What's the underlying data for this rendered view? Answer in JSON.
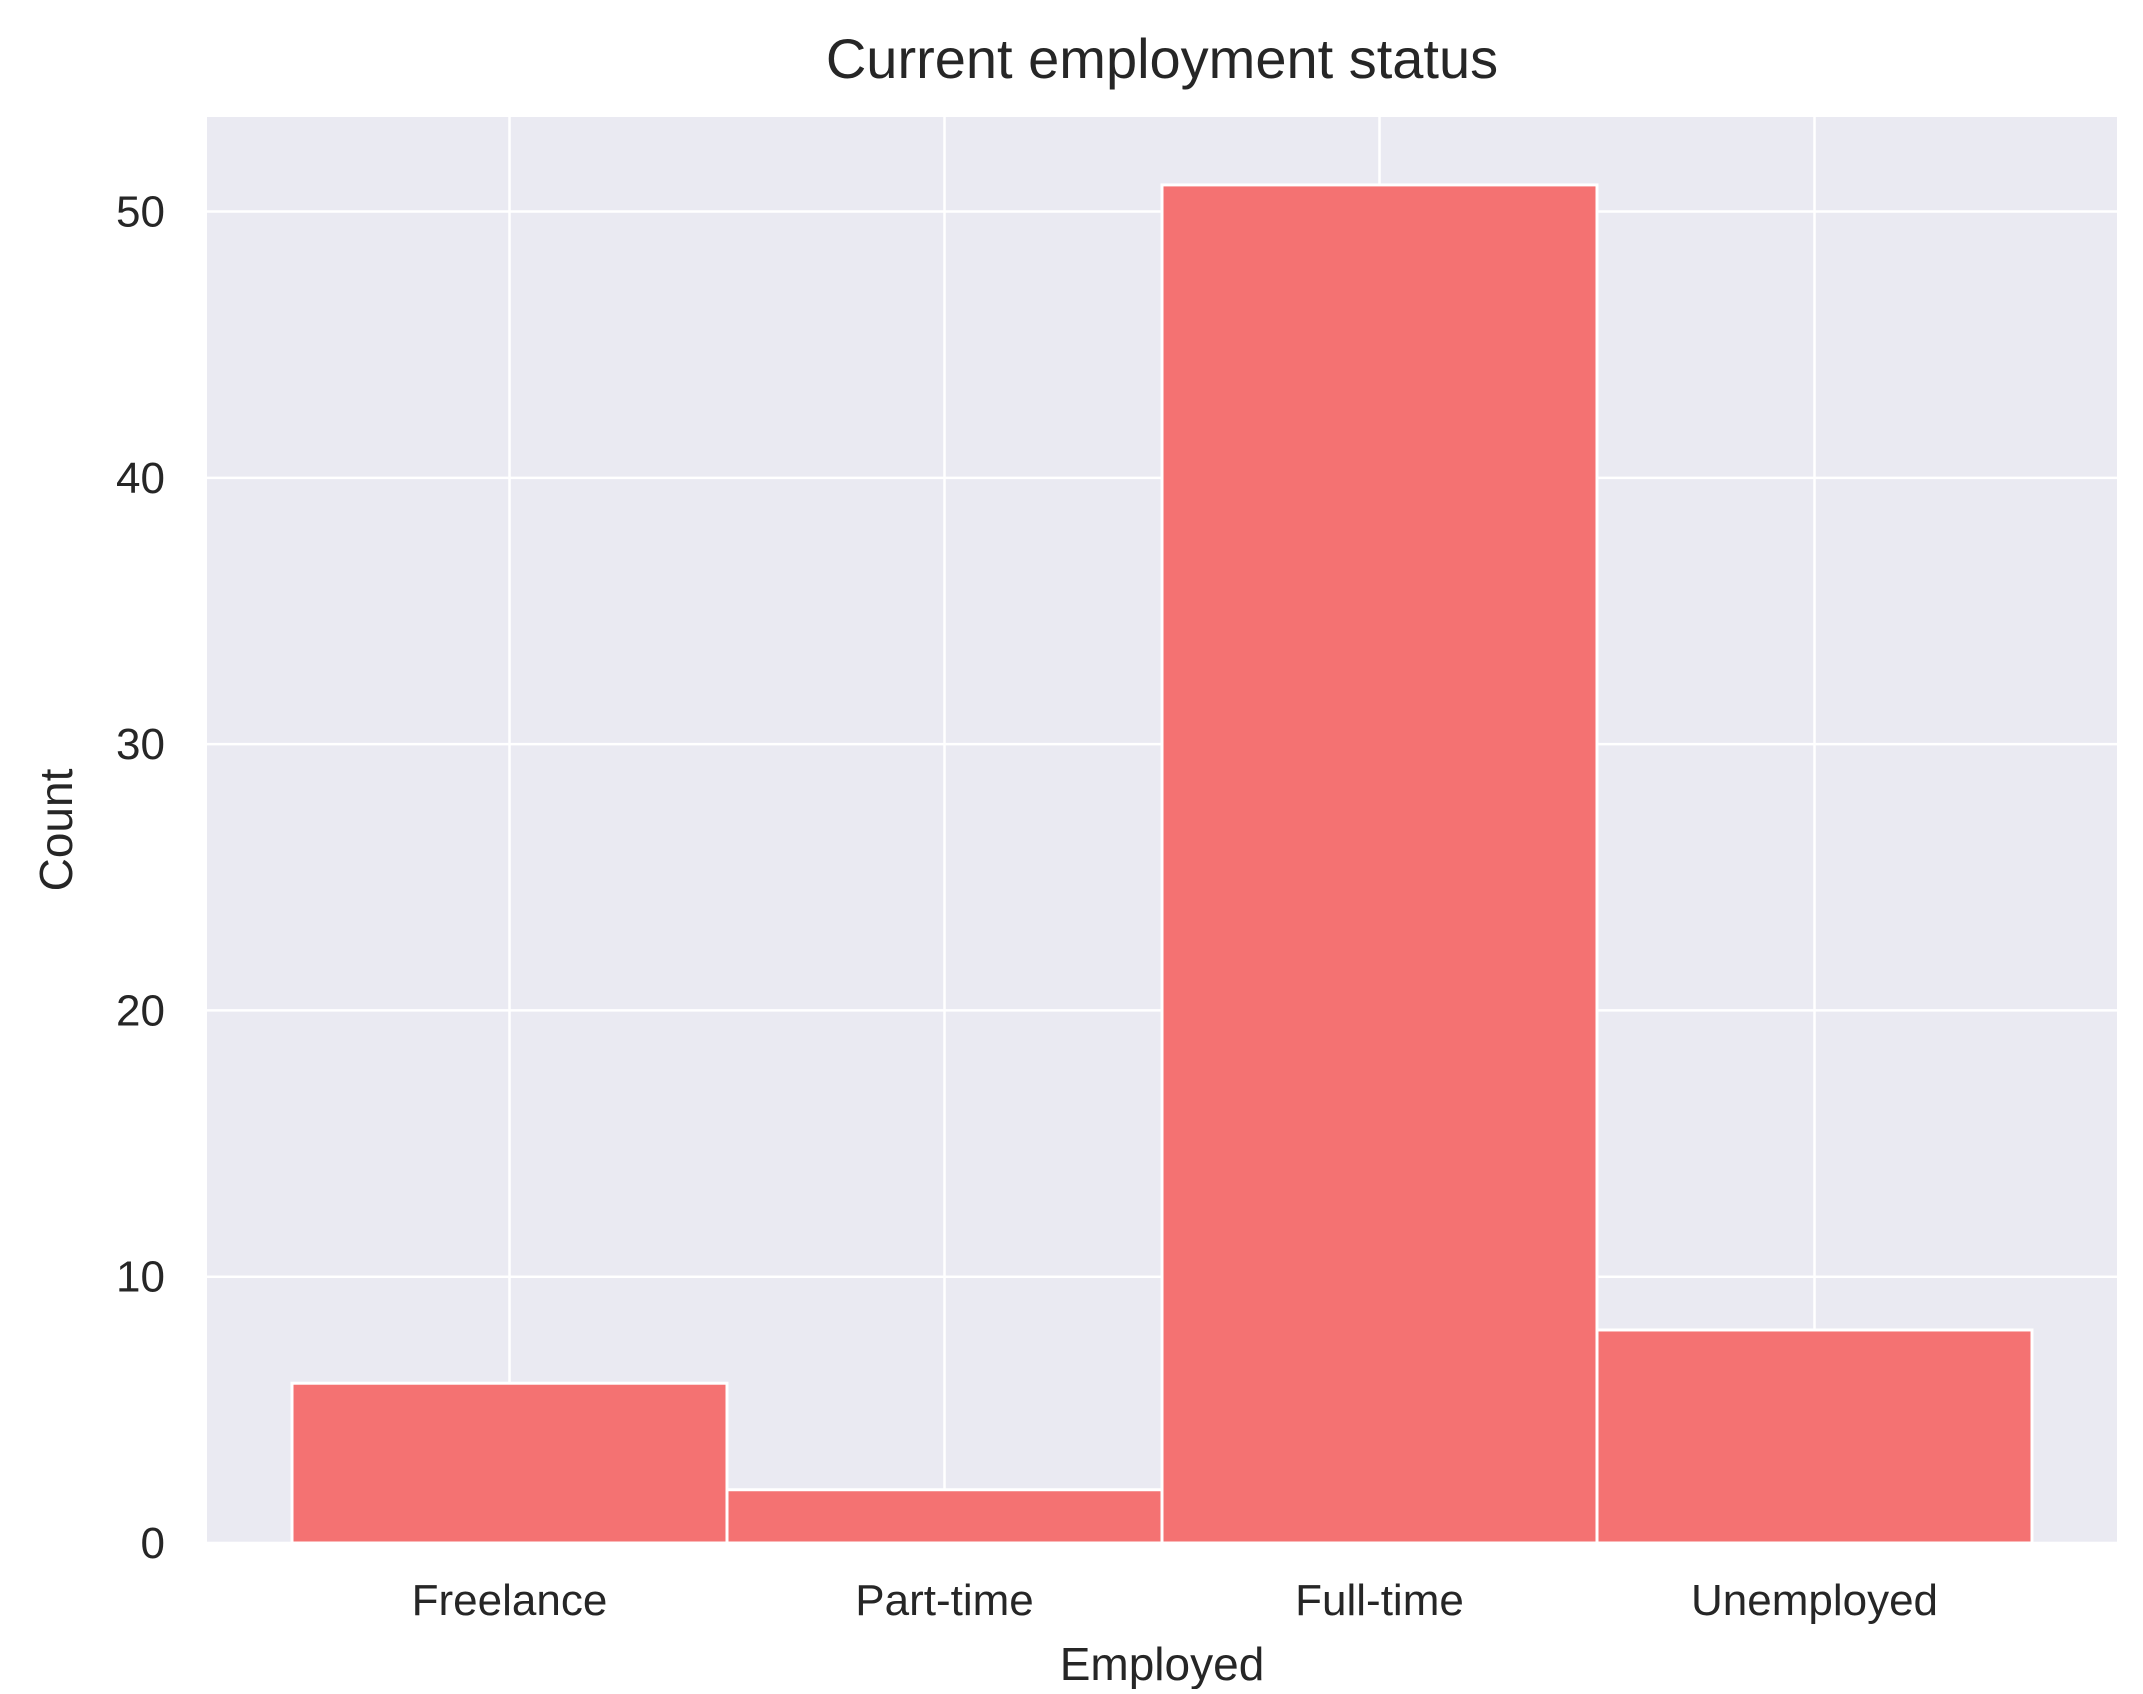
{
  "chart_data": {
    "type": "bar",
    "title": "Current employment status",
    "xlabel": "Employed",
    "ylabel": "Count",
    "categories": [
      "Freelance",
      "Part-time",
      "Full-time",
      "Unemployed"
    ],
    "values": [
      6,
      2,
      51,
      8
    ],
    "ylim": [
      0,
      53.55
    ],
    "yticks": [
      0,
      10,
      20,
      30,
      40,
      50
    ],
    "grid": true,
    "legend": "none",
    "colors": {
      "bar_fill": "#f47272",
      "bar_edge": "#ffffff",
      "plot_background": "#eaeaf2",
      "grid": "#ffffff",
      "text": "#262626"
    }
  }
}
